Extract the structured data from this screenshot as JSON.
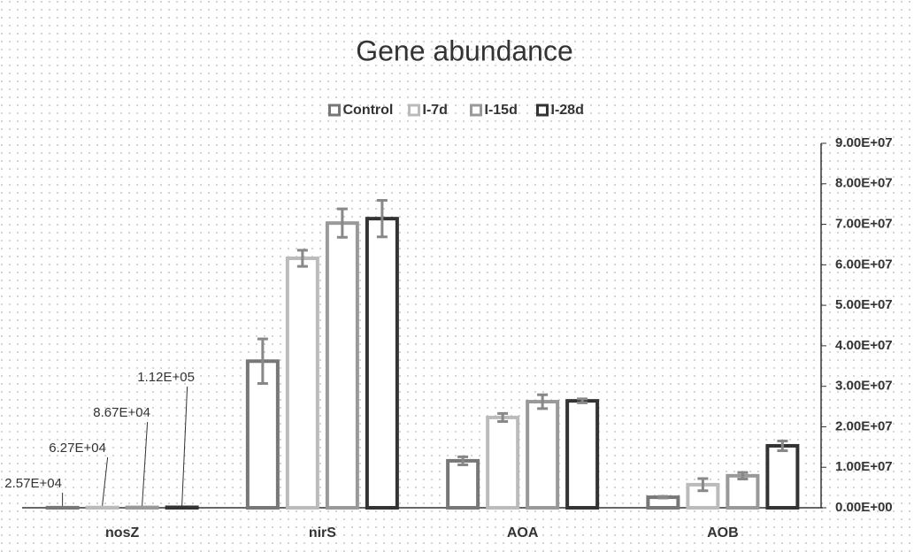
{
  "chart_data": {
    "type": "bar",
    "title": "Gene abundance",
    "categories": [
      "nosZ",
      "nirS",
      "AOA",
      "AOB"
    ],
    "series": [
      {
        "name": "Control",
        "color": "#777777",
        "values": [
          25700,
          36200000,
          11600000,
          2600000
        ],
        "errors": [
          0,
          5500000,
          1000000,
          200000
        ],
        "value_labels": [
          "2.57E+04",
          null,
          null,
          null
        ]
      },
      {
        "name": "I-7d",
        "color": "#bbbbbb",
        "values": [
          62700,
          61600000,
          22300000,
          5700000
        ],
        "errors": [
          0,
          2000000,
          1000000,
          1500000
        ],
        "value_labels": [
          "6.27E+04",
          null,
          null,
          null
        ]
      },
      {
        "name": "I-15d",
        "color": "#999999",
        "values": [
          86700,
          70300000,
          26200000,
          7900000
        ],
        "errors": [
          0,
          3500000,
          1700000,
          800000
        ],
        "value_labels": [
          "8.67E+04",
          null,
          null,
          null
        ]
      },
      {
        "name": "I-28d",
        "color": "#333333",
        "values": [
          112000,
          71400000,
          26400000,
          15300000
        ],
        "errors": [
          0,
          4500000,
          500000,
          1200000
        ],
        "value_labels": [
          "1.12E+05",
          null,
          null,
          null
        ]
      }
    ],
    "ylim": [
      0,
      90000000
    ],
    "yticks": [
      {
        "value": 0,
        "label": "0.00E+00"
      },
      {
        "value": 10000000,
        "label": "1.00E+07"
      },
      {
        "value": 20000000,
        "label": "2.00E+07"
      },
      {
        "value": 30000000,
        "label": "3.00E+07"
      },
      {
        "value": 40000000,
        "label": "4.00E+07"
      },
      {
        "value": 50000000,
        "label": "5.00E+07"
      },
      {
        "value": 60000000,
        "label": "6.00E+07"
      },
      {
        "value": 70000000,
        "label": "7.00E+07"
      },
      {
        "value": 80000000,
        "label": "8.00E+07"
      },
      {
        "value": 90000000,
        "label": "9.00E+07"
      }
    ],
    "y_axis_side": "right",
    "legend": "top"
  }
}
